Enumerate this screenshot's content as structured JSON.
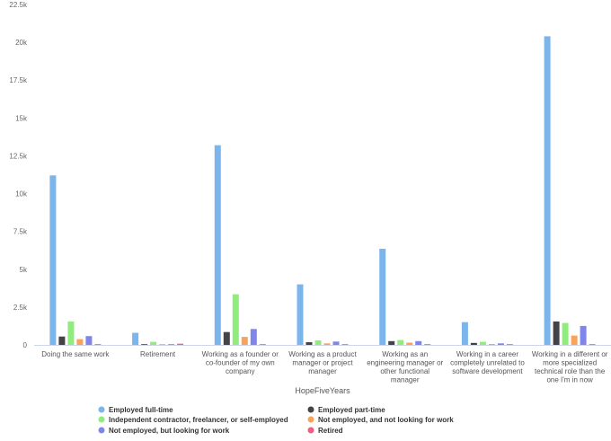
{
  "chart_data": {
    "type": "bar",
    "xlabel": "HopeFiveYears",
    "ylabel": "",
    "ylim": [
      0,
      22500
    ],
    "yticks": [
      0,
      2500,
      5000,
      7500,
      10000,
      12500,
      15000,
      17500,
      20000,
      22500
    ],
    "ytick_labels": [
      "0",
      "2.5k",
      "5k",
      "7.5k",
      "10k",
      "12.5k",
      "15k",
      "17.5k",
      "20k",
      "22.5k"
    ],
    "grid": false,
    "legend_position": "bottom",
    "categories": [
      [
        "Doing the same work"
      ],
      [
        "Retirement"
      ],
      [
        "Working as a founder or",
        "co-founder of my own",
        "company"
      ],
      [
        "Working as a product",
        "manager or project",
        "manager"
      ],
      [
        "Working as an",
        "engineering manager or",
        "other functional",
        "manager"
      ],
      [
        "Working in a career",
        "completely unrelated to",
        "software development"
      ],
      [
        "Working in a different or",
        "more specialized",
        "technical role than the",
        "one I'm in now"
      ]
    ],
    "series": [
      {
        "name": "Employed full-time",
        "color": "#7cb5ec",
        "values": [
          11200,
          800,
          13200,
          4000,
          6350,
          1500,
          20400
        ]
      },
      {
        "name": "Employed part-time",
        "color": "#434348",
        "values": [
          550,
          20,
          850,
          180,
          250,
          130,
          1550
        ]
      },
      {
        "name": "Independent contractor, freelancer, or self-employed",
        "color": "#90ed7d",
        "values": [
          1550,
          200,
          3350,
          300,
          320,
          200,
          1450
        ]
      },
      {
        "name": "Not employed, and not looking for work",
        "color": "#f7a35c",
        "values": [
          380,
          20,
          530,
          100,
          150,
          60,
          620
        ]
      },
      {
        "name": "Not employed, but looking for work",
        "color": "#8085e9",
        "values": [
          580,
          20,
          1050,
          220,
          250,
          100,
          1250
        ]
      },
      {
        "name": "Retired",
        "color": "#f15c80",
        "values": [
          20,
          80,
          10,
          10,
          10,
          10,
          10
        ]
      }
    ]
  }
}
